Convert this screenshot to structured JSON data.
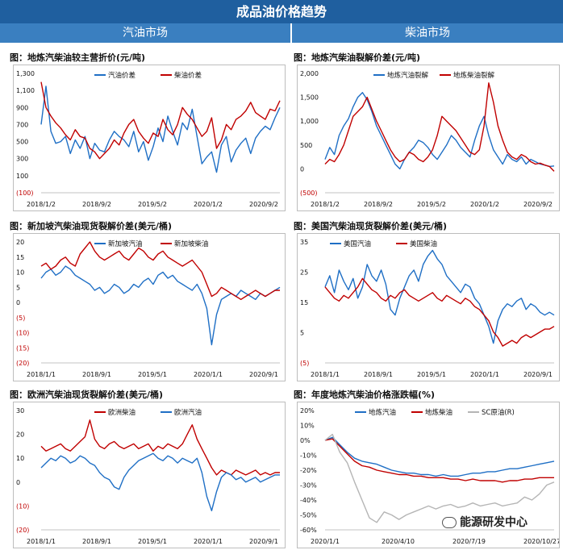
{
  "header": {
    "title": "成品油价格趋势"
  },
  "sections": {
    "left": "汽油市场",
    "right": "柴油市场"
  },
  "watermark": "能源研发中心",
  "chart_data": [
    {
      "id": "c1",
      "type": "line",
      "title": "图：地炼汽柴油较主营折价(元/吨)",
      "yticks": [
        "1,300",
        "1,100",
        "900",
        "700",
        "500",
        "300",
        "100",
        "(100)"
      ],
      "ylim": [
        -100,
        1300
      ],
      "xticks": [
        "2018/1/2",
        "2018/9/2",
        "2019/5/2",
        "2020/1/2",
        "2020/9/2"
      ],
      "legend_pos": "top-center",
      "series": [
        {
          "name": "汽油价差",
          "color": "#1f6fc5",
          "values": [
            700,
            1150,
            620,
            480,
            500,
            560,
            360,
            520,
            420,
            560,
            300,
            480,
            400,
            380,
            520,
            620,
            560,
            520,
            440,
            620,
            380,
            500,
            280,
            440,
            660,
            500,
            800,
            620,
            460,
            720,
            640,
            880,
            560,
            240,
            320,
            380,
            140,
            460,
            560,
            260,
            400,
            480,
            540,
            360,
            540,
            620,
            680,
            640,
            780,
            900
          ]
        },
        {
          "name": "柴油价差",
          "color": "#c00000",
          "values": [
            1200,
            900,
            800,
            720,
            660,
            580,
            520,
            640,
            560,
            540,
            420,
            380,
            300,
            360,
            420,
            520,
            460,
            600,
            700,
            760,
            620,
            540,
            480,
            600,
            560,
            760,
            640,
            580,
            700,
            900,
            820,
            760,
            660,
            560,
            620,
            780,
            420,
            520,
            700,
            640,
            760,
            800,
            860,
            960,
            840,
            800,
            760,
            880,
            860,
            980
          ]
        }
      ]
    },
    {
      "id": "c2",
      "type": "line",
      "title": "图：地炼汽柴油裂解价差(元/吨)",
      "yticks": [
        "2,000",
        "1,500",
        "1,000",
        "500",
        "0",
        "(500)"
      ],
      "ylim": [
        -500,
        2000
      ],
      "xticks": [
        "2018/1/2",
        "2018/9/2",
        "2019/5/2",
        "2020/1/2",
        "2020/9/2"
      ],
      "legend_pos": "top-center",
      "series": [
        {
          "name": "地炼汽油裂解",
          "color": "#1f6fc5",
          "values": [
            200,
            450,
            300,
            700,
            900,
            1050,
            1300,
            1500,
            1600,
            1450,
            1200,
            900,
            700,
            500,
            300,
            100,
            0,
            200,
            350,
            450,
            600,
            550,
            450,
            300,
            200,
            350,
            500,
            700,
            600,
            450,
            350,
            250,
            600,
            900,
            1100,
            700,
            400,
            250,
            100,
            300,
            200,
            150,
            250,
            100,
            200,
            150,
            100,
            80,
            50,
            60
          ]
        },
        {
          "name": "地炼柴油裂解",
          "color": "#c00000",
          "values": [
            100,
            200,
            150,
            300,
            500,
            800,
            1100,
            1200,
            1300,
            1500,
            1250,
            1000,
            800,
            600,
            400,
            250,
            150,
            200,
            350,
            300,
            200,
            150,
            250,
            400,
            700,
            1100,
            1000,
            900,
            800,
            650,
            500,
            350,
            300,
            400,
            900,
            1800,
            1400,
            900,
            600,
            350,
            250,
            200,
            300,
            250,
            150,
            100,
            120,
            80,
            50,
            -50
          ]
        }
      ]
    },
    {
      "id": "c3",
      "type": "line",
      "title": "图：新加坡汽柴油现货裂解价差(美元/桶)",
      "yticks": [
        "20",
        "15",
        "10",
        "5",
        "0",
        "(5)",
        "(10)",
        "(15)",
        "(20)"
      ],
      "ylim": [
        -20,
        20
      ],
      "xticks": [
        "2018/1/1",
        "2018/9/1",
        "2019/5/1",
        "2020/1/1",
        "2020/9/1"
      ],
      "legend_pos": "top-center",
      "series": [
        {
          "name": "新加坡汽油",
          "color": "#1f6fc5",
          "values": [
            8,
            10,
            11,
            9,
            10,
            12,
            11,
            9,
            8,
            7,
            6,
            4,
            5,
            3,
            4,
            6,
            5,
            3,
            4,
            6,
            5,
            7,
            8,
            6,
            9,
            10,
            8,
            9,
            7,
            6,
            5,
            4,
            6,
            3,
            -2,
            -14,
            -4,
            1,
            2,
            3,
            2,
            4,
            3,
            2,
            1,
            3,
            2,
            3,
            4,
            5
          ]
        },
        {
          "name": "新加坡柴油",
          "color": "#c00000",
          "values": [
            12,
            13,
            11,
            12,
            14,
            15,
            13,
            12,
            16,
            18,
            20,
            17,
            15,
            14,
            15,
            16,
            17,
            15,
            14,
            16,
            18,
            17,
            15,
            14,
            16,
            17,
            15,
            14,
            13,
            12,
            13,
            14,
            12,
            10,
            6,
            2,
            3,
            5,
            4,
            3,
            2,
            1,
            2,
            3,
            4,
            3,
            2,
            3,
            4,
            4
          ]
        }
      ]
    },
    {
      "id": "c4",
      "type": "line",
      "title": "图：美国汽柴油现货裂解价差(美元/桶)",
      "yticks": [
        "35",
        "25",
        "15",
        "5",
        "(5)"
      ],
      "ylim": [
        -5,
        38
      ],
      "xticks": [
        "2018/1/1",
        "2018/9/1",
        "2019/5/1",
        "2020/1/1",
        "2020/9/1"
      ],
      "legend_pos": "top-left",
      "series": [
        {
          "name": "美国汽油",
          "color": "#1f6fc5",
          "values": [
            22,
            26,
            20,
            28,
            24,
            21,
            25,
            18,
            22,
            30,
            26,
            24,
            28,
            23,
            14,
            12,
            18,
            22,
            26,
            28,
            24,
            30,
            33,
            35,
            32,
            30,
            26,
            24,
            22,
            20,
            23,
            22,
            18,
            16,
            12,
            8,
            2,
            10,
            14,
            16,
            15,
            17,
            18,
            14,
            16,
            15,
            13,
            12,
            13,
            12
          ]
        },
        {
          "name": "美国柴油",
          "color": "#c00000",
          "values": [
            22,
            20,
            18,
            17,
            19,
            18,
            20,
            22,
            25,
            23,
            21,
            20,
            18,
            17,
            19,
            18,
            20,
            21,
            19,
            18,
            17,
            18,
            19,
            20,
            18,
            17,
            19,
            18,
            17,
            16,
            18,
            17,
            15,
            14,
            12,
            10,
            6,
            4,
            1,
            2,
            3,
            2,
            4,
            5,
            4,
            5,
            6,
            7,
            7,
            8
          ]
        }
      ]
    },
    {
      "id": "c5",
      "type": "line",
      "title": "图：欧洲汽柴油现货裂解价差(美元/桶)",
      "yticks": [
        "30",
        "20",
        "10",
        "0",
        "(10)",
        "(20)"
      ],
      "ylim": [
        -20,
        30
      ],
      "xticks": [
        "2018/1/1",
        "2018/9/1",
        "2019/5/1",
        "2020/1/1",
        "2020/9/1"
      ],
      "legend_pos": "top-center",
      "series": [
        {
          "name": "欧洲柴油",
          "color": "#c00000",
          "values": [
            15,
            13,
            14,
            15,
            16,
            14,
            13,
            15,
            17,
            19,
            26,
            18,
            15,
            14,
            16,
            17,
            15,
            14,
            15,
            16,
            14,
            15,
            16,
            13,
            15,
            14,
            16,
            15,
            14,
            16,
            20,
            24,
            18,
            14,
            10,
            6,
            3,
            5,
            4,
            3,
            5,
            4,
            3,
            4,
            5,
            3,
            4,
            3,
            4,
            4
          ]
        },
        {
          "name": "欧洲汽油",
          "color": "#1f6fc5",
          "values": [
            6,
            8,
            10,
            9,
            11,
            10,
            8,
            9,
            11,
            10,
            8,
            7,
            4,
            2,
            1,
            -2,
            -3,
            2,
            5,
            7,
            9,
            10,
            11,
            12,
            10,
            9,
            11,
            10,
            8,
            10,
            9,
            8,
            10,
            4,
            -6,
            -12,
            -4,
            2,
            4,
            3,
            1,
            2,
            0,
            1,
            2,
            0,
            1,
            2,
            3,
            3
          ]
        }
      ]
    },
    {
      "id": "c6",
      "type": "line",
      "title": "图：年度地炼汽柴油价格涨跌幅(%)",
      "yticks": [
        "20%",
        "10%",
        "0%",
        "-10%",
        "-20%",
        "-30%",
        "-40%",
        "-50%",
        "-60%"
      ],
      "ylim": [
        -60,
        20
      ],
      "xticks": [
        "2020/1/1",
        "2020/4/10",
        "2020/7/19",
        "2020/10/27"
      ],
      "legend_pos": "top-center",
      "series": [
        {
          "name": "地炼汽油",
          "color": "#1f6fc5",
          "values": [
            0,
            2,
            -3,
            -8,
            -12,
            -14,
            -15,
            -16,
            -18,
            -20,
            -21,
            -22,
            -22,
            -23,
            -23,
            -24,
            -23,
            -24,
            -24,
            -23,
            -22,
            -22,
            -21,
            -21,
            -20,
            -19,
            -19,
            -18,
            -17,
            -16,
            -15,
            -14
          ]
        },
        {
          "name": "地炼柴油",
          "color": "#c00000",
          "values": [
            0,
            1,
            -4,
            -9,
            -14,
            -17,
            -18,
            -20,
            -21,
            -22,
            -23,
            -23,
            -24,
            -24,
            -25,
            -25,
            -25,
            -26,
            -26,
            -27,
            -26,
            -27,
            -27,
            -27,
            -28,
            -27,
            -27,
            -26,
            -26,
            -25,
            -25,
            -25
          ]
        },
        {
          "name": "SC原油(R)",
          "color": "#b5b5b5",
          "values": [
            0,
            4,
            -8,
            -15,
            -28,
            -40,
            -52,
            -55,
            -48,
            -50,
            -53,
            -50,
            -48,
            -46,
            -44,
            -46,
            -44,
            -43,
            -45,
            -44,
            -42,
            -44,
            -43,
            -42,
            -44,
            -43,
            -42,
            -38,
            -40,
            -36,
            -30,
            -28
          ]
        }
      ]
    }
  ]
}
